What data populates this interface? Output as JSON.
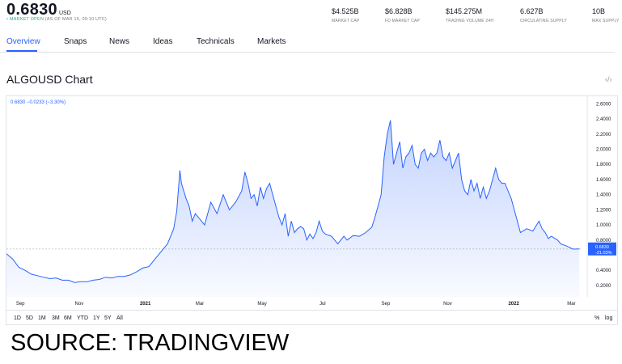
{
  "header": {
    "price": "0.6830",
    "price_unit": "USD",
    "status_dot": "•",
    "status_label": "MARKET OPEN",
    "status_time": "(AS OF MAR 15, 09:10 UTC)",
    "stats": [
      {
        "value": "$4.525B",
        "label": "MARKET CAP"
      },
      {
        "value": "$6.828B",
        "label": "FD MARKET CAP"
      },
      {
        "value": "$145.275M",
        "label": "TRADING VOLUME 24H"
      },
      {
        "value": "6.627B",
        "label": "CIRCULATING SUPPLY"
      },
      {
        "value": "10B",
        "label": "MAX SUPPLY"
      }
    ]
  },
  "tabs": [
    {
      "label": "Overview",
      "active": true
    },
    {
      "label": "Snaps"
    },
    {
      "label": "News"
    },
    {
      "label": "Ideas"
    },
    {
      "label": "Technicals"
    },
    {
      "label": "Markets"
    }
  ],
  "chart_title": "ALGOUSD Chart",
  "embed_icon": "code-embed-icon",
  "legend": "0.6830  −0.0233 (−3.30%)",
  "range_buttons": [
    "1D",
    "5D",
    "1M",
    "3M",
    "6M",
    "YTD",
    "1Y",
    "5Y",
    "All"
  ],
  "right_controls": [
    "%",
    "log"
  ],
  "source": "SOURCE: TRADINGVIEW",
  "colors": {
    "accent": "#2962ff",
    "open": "#26a69a"
  },
  "chart_data": {
    "type": "area",
    "series_color": "#2962ff",
    "y_ticks": [
      "2.6000",
      "2.4000",
      "2.2000",
      "2.0000",
      "1.8000",
      "1.6000",
      "1.4000",
      "1.2000",
      "1.0000",
      "0.8000",
      "0.4000",
      "0.2000"
    ],
    "y_range": [
      0.05,
      2.7
    ],
    "x_ticks": [
      "Sep",
      "Nov",
      "2021",
      "Mar",
      "May",
      "Jul",
      "Sep",
      "Nov",
      "2022",
      "Mar"
    ],
    "x_range": [
      0,
      18.6
    ],
    "x_tick_positions": [
      0.1,
      2.0,
      4.1,
      5.9,
      7.9,
      9.9,
      11.9,
      13.9,
      16.0,
      17.9
    ],
    "current_value": "0.6830",
    "current_change": "-21.03%",
    "points": [
      [
        0.0,
        0.62
      ],
      [
        0.2,
        0.55
      ],
      [
        0.4,
        0.44
      ],
      [
        0.6,
        0.4
      ],
      [
        0.8,
        0.35
      ],
      [
        1.0,
        0.33
      ],
      [
        1.2,
        0.31
      ],
      [
        1.4,
        0.29
      ],
      [
        1.6,
        0.3
      ],
      [
        1.8,
        0.27
      ],
      [
        2.0,
        0.27
      ],
      [
        2.2,
        0.24
      ],
      [
        2.4,
        0.25
      ],
      [
        2.6,
        0.25
      ],
      [
        2.8,
        0.27
      ],
      [
        3.0,
        0.28
      ],
      [
        3.2,
        0.31
      ],
      [
        3.4,
        0.3
      ],
      [
        3.6,
        0.32
      ],
      [
        3.8,
        0.32
      ],
      [
        4.0,
        0.34
      ],
      [
        4.2,
        0.38
      ],
      [
        4.4,
        0.43
      ],
      [
        4.6,
        0.45
      ],
      [
        4.8,
        0.55
      ],
      [
        5.0,
        0.65
      ],
      [
        5.2,
        0.75
      ],
      [
        5.4,
        0.95
      ],
      [
        5.5,
        1.18
      ],
      [
        5.6,
        1.72
      ],
      [
        5.65,
        1.55
      ],
      [
        5.8,
        1.35
      ],
      [
        5.9,
        1.25
      ],
      [
        6.0,
        1.05
      ],
      [
        6.1,
        1.15
      ],
      [
        6.2,
        1.1
      ],
      [
        6.4,
        1.0
      ],
      [
        6.6,
        1.3
      ],
      [
        6.8,
        1.15
      ],
      [
        7.0,
        1.4
      ],
      [
        7.2,
        1.2
      ],
      [
        7.4,
        1.3
      ],
      [
        7.6,
        1.45
      ],
      [
        7.7,
        1.7
      ],
      [
        7.8,
        1.55
      ],
      [
        7.9,
        1.35
      ],
      [
        8.0,
        1.4
      ],
      [
        8.1,
        1.25
      ],
      [
        8.2,
        1.5
      ],
      [
        8.3,
        1.35
      ],
      [
        8.4,
        1.48
      ],
      [
        8.5,
        1.55
      ],
      [
        8.6,
        1.4
      ],
      [
        8.7,
        1.25
      ],
      [
        8.8,
        1.1
      ],
      [
        8.9,
        1.0
      ],
      [
        9.0,
        1.15
      ],
      [
        9.1,
        0.85
      ],
      [
        9.2,
        1.05
      ],
      [
        9.3,
        0.9
      ],
      [
        9.4,
        0.95
      ],
      [
        9.5,
        0.98
      ],
      [
        9.6,
        0.95
      ],
      [
        9.7,
        0.8
      ],
      [
        9.8,
        0.88
      ],
      [
        9.9,
        0.82
      ],
      [
        10.0,
        0.9
      ],
      [
        10.1,
        1.05
      ],
      [
        10.2,
        0.92
      ],
      [
        10.3,
        0.88
      ],
      [
        10.5,
        0.85
      ],
      [
        10.7,
        0.75
      ],
      [
        10.9,
        0.85
      ],
      [
        11.0,
        0.8
      ],
      [
        11.2,
        0.86
      ],
      [
        11.4,
        0.85
      ],
      [
        11.6,
        0.9
      ],
      [
        11.8,
        0.97
      ],
      [
        11.9,
        1.1
      ],
      [
        12.0,
        1.25
      ],
      [
        12.1,
        1.4
      ],
      [
        12.2,
        1.9
      ],
      [
        12.3,
        2.2
      ],
      [
        12.4,
        2.38
      ],
      [
        12.45,
        2.1
      ],
      [
        12.5,
        1.8
      ],
      [
        12.6,
        1.95
      ],
      [
        12.7,
        2.1
      ],
      [
        12.8,
        1.75
      ],
      [
        12.9,
        1.9
      ],
      [
        13.0,
        1.95
      ],
      [
        13.1,
        2.05
      ],
      [
        13.2,
        1.8
      ],
      [
        13.3,
        1.75
      ],
      [
        13.4,
        1.95
      ],
      [
        13.5,
        2.0
      ],
      [
        13.6,
        1.85
      ],
      [
        13.7,
        1.95
      ],
      [
        13.8,
        1.9
      ],
      [
        13.9,
        1.95
      ],
      [
        14.0,
        2.12
      ],
      [
        14.1,
        1.9
      ],
      [
        14.2,
        1.85
      ],
      [
        14.3,
        1.95
      ],
      [
        14.4,
        1.75
      ],
      [
        14.5,
        1.85
      ],
      [
        14.6,
        1.95
      ],
      [
        14.7,
        1.6
      ],
      [
        14.8,
        1.45
      ],
      [
        14.9,
        1.4
      ],
      [
        15.0,
        1.6
      ],
      [
        15.1,
        1.45
      ],
      [
        15.2,
        1.55
      ],
      [
        15.3,
        1.35
      ],
      [
        15.4,
        1.5
      ],
      [
        15.5,
        1.35
      ],
      [
        15.6,
        1.45
      ],
      [
        15.7,
        1.6
      ],
      [
        15.8,
        1.75
      ],
      [
        15.9,
        1.6
      ],
      [
        16.0,
        1.55
      ],
      [
        16.1,
        1.55
      ],
      [
        16.2,
        1.45
      ],
      [
        16.3,
        1.35
      ],
      [
        16.4,
        1.2
      ],
      [
        16.5,
        1.05
      ],
      [
        16.6,
        0.9
      ],
      [
        16.8,
        0.95
      ],
      [
        17.0,
        0.92
      ],
      [
        17.2,
        1.05
      ],
      [
        17.3,
        0.95
      ],
      [
        17.4,
        0.9
      ],
      [
        17.5,
        0.82
      ],
      [
        17.6,
        0.85
      ],
      [
        17.8,
        0.8
      ],
      [
        17.9,
        0.75
      ],
      [
        18.1,
        0.72
      ],
      [
        18.3,
        0.68
      ],
      [
        18.5,
        0.6831
      ]
    ]
  }
}
